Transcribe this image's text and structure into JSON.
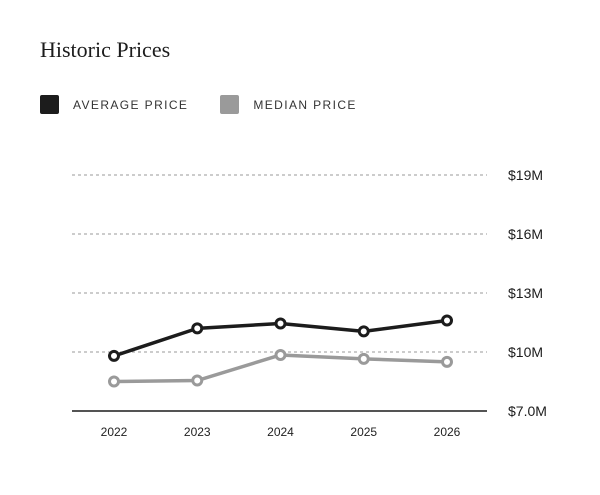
{
  "colors": {
    "average": "#1c1c1c",
    "median": "#9a9a9a",
    "grid": "#9a9a9a"
  },
  "chart_data": {
    "type": "line",
    "title": "Historic Prices",
    "categories": [
      "2022",
      "2023",
      "2024",
      "2025",
      "2026"
    ],
    "series": [
      {
        "name": "AVERAGE PRICE",
        "values": [
          9.8,
          11.2,
          11.45,
          11.05,
          11.6
        ]
      },
      {
        "name": "MEDIAN PRICE",
        "values": [
          8.5,
          8.55,
          9.85,
          9.65,
          9.5
        ]
      }
    ],
    "yticks": [
      7,
      10,
      13,
      16,
      19
    ],
    "ytick_labels": [
      "$7.0M",
      "$10M",
      "$13M",
      "$16M",
      "$19M"
    ],
    "ylim": [
      7,
      19
    ],
    "grid": true,
    "legend": "top-left"
  }
}
